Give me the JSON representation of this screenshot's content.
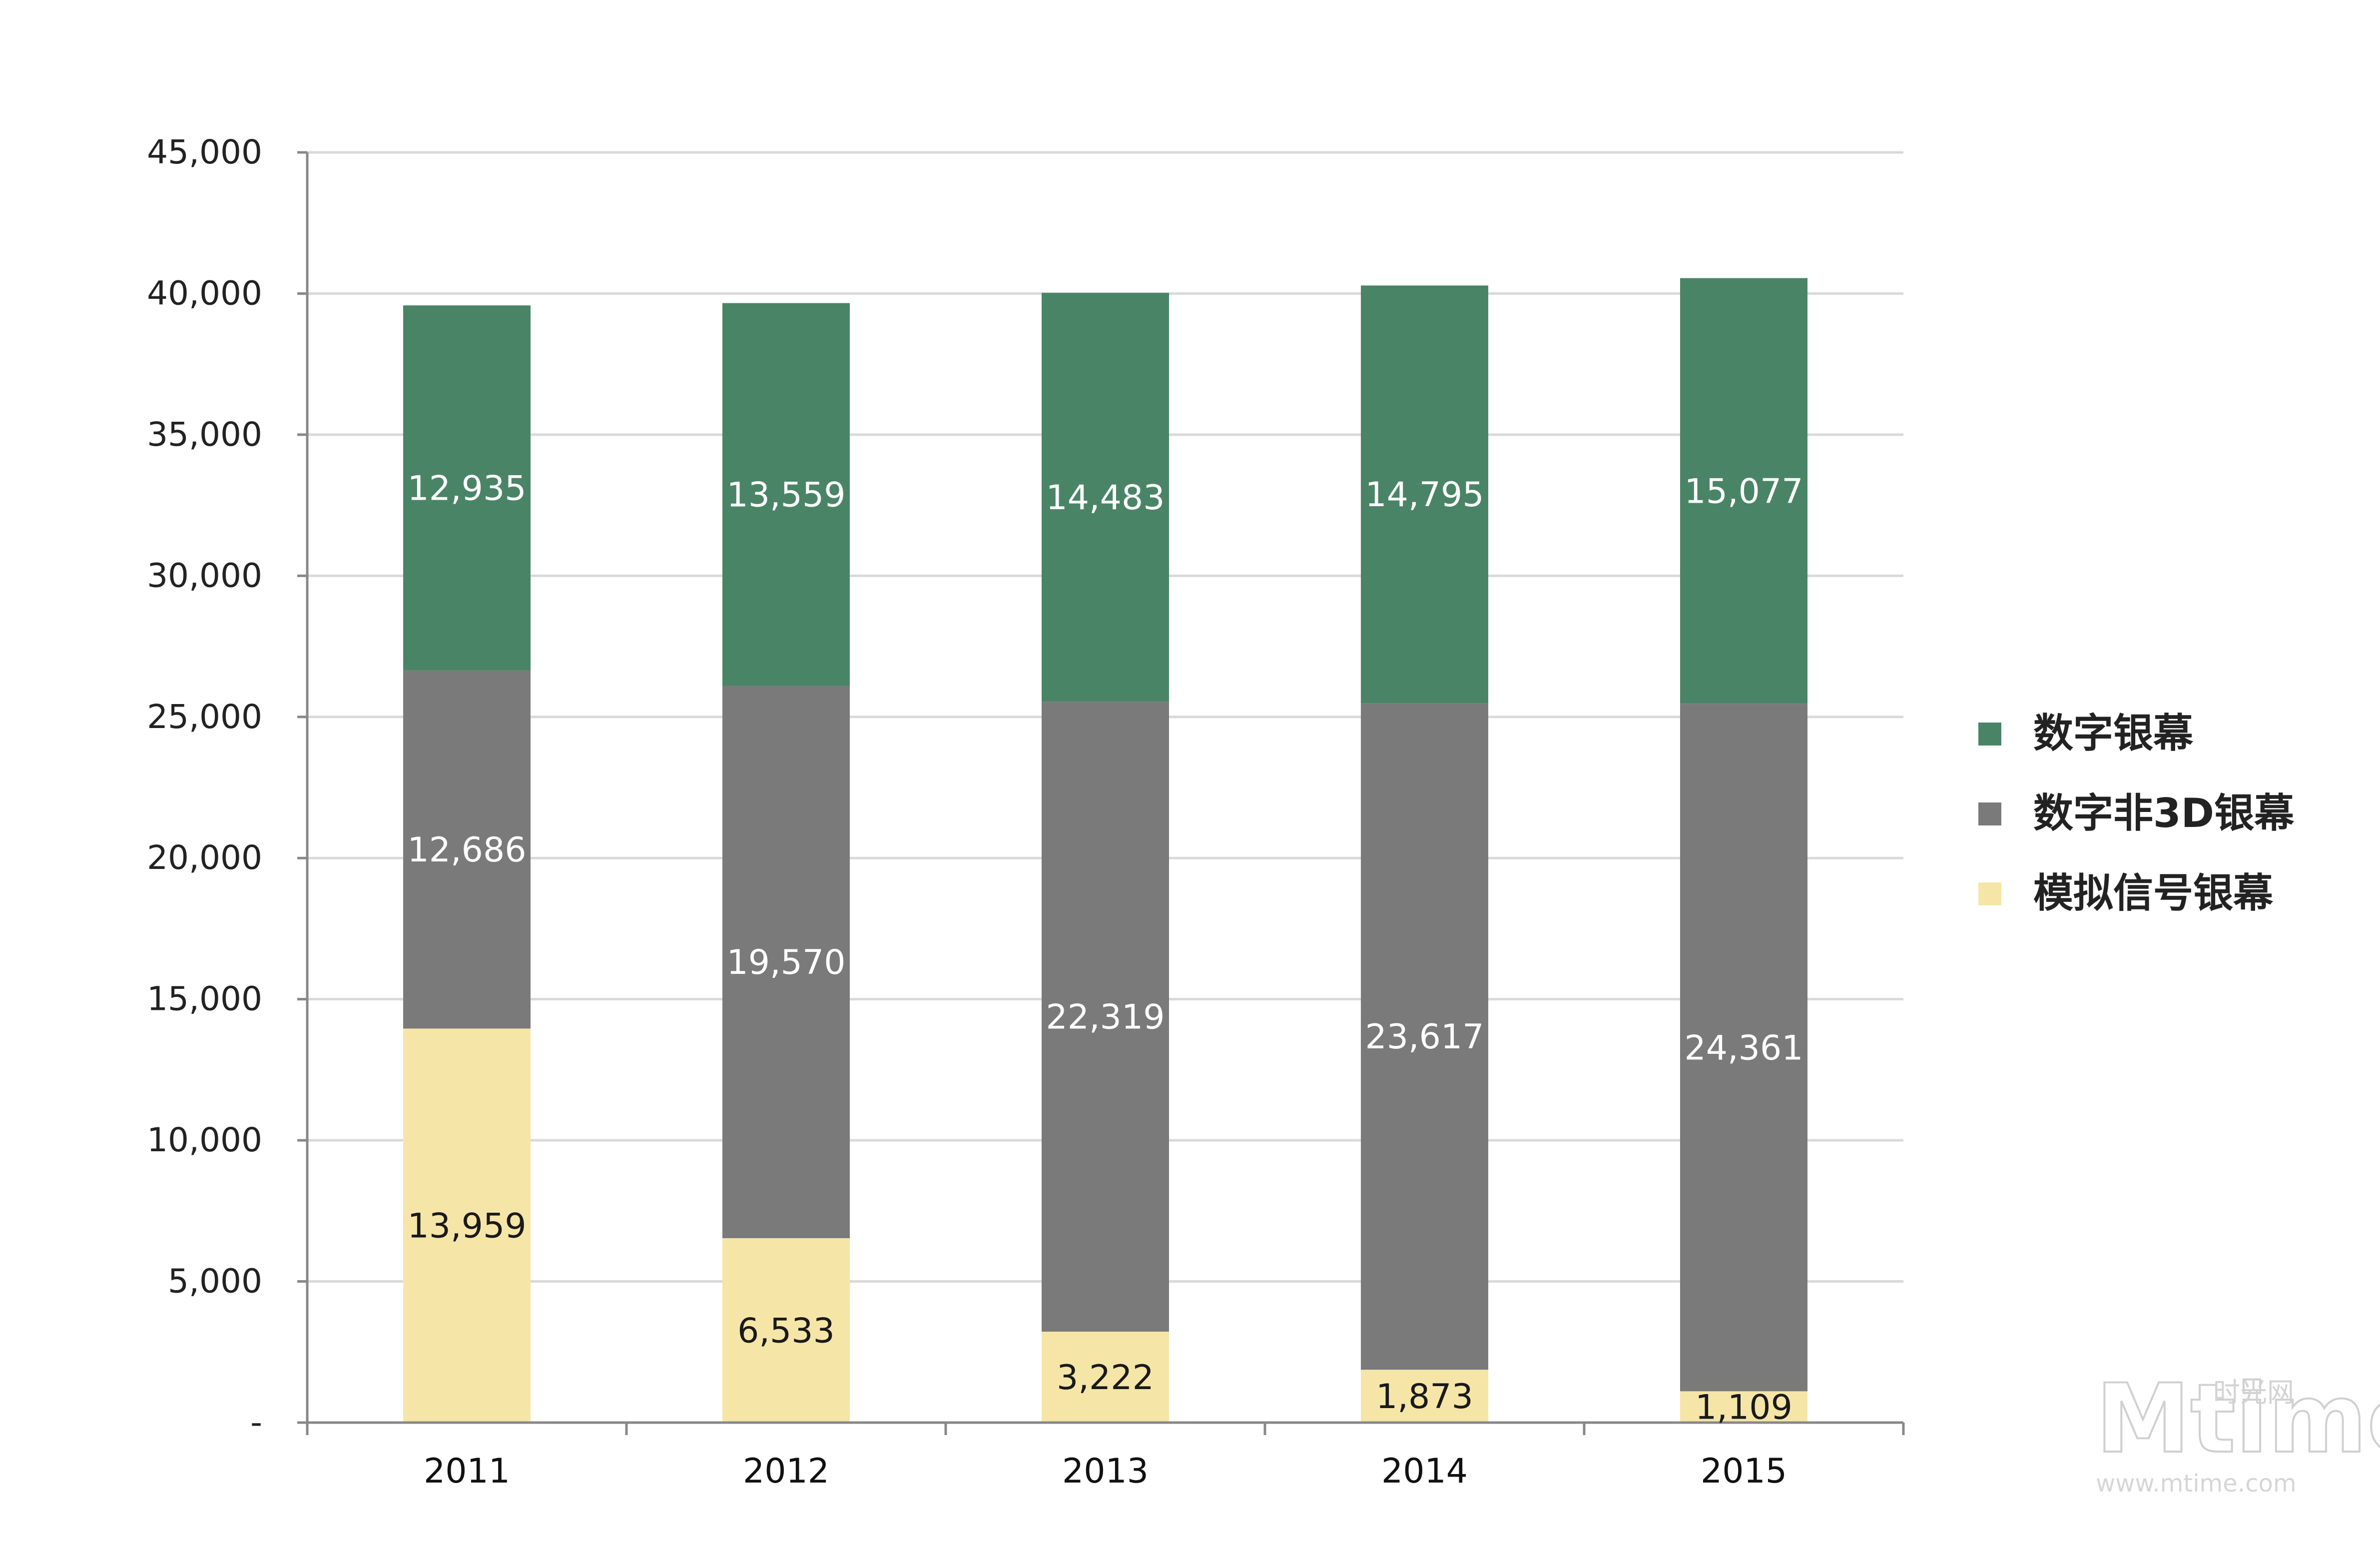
{
  "chart_data": {
    "type": "bar",
    "stacked": true,
    "categories": [
      "2011",
      "2012",
      "2013",
      "2014",
      "2015"
    ],
    "series": [
      {
        "name": "模拟信号银幕",
        "color": "#f5e6a8",
        "label_color": "#1a1a1a",
        "values": [
          13959,
          6533,
          3222,
          1873,
          1109
        ],
        "labels": [
          "13,959",
          "6,533",
          "3,222",
          "1,873",
          "1,109"
        ]
      },
      {
        "name": "数字非3D银幕",
        "color": "#7a7a7a",
        "label_color": "#ffffff",
        "values": [
          12686,
          19570,
          22319,
          23617,
          24361
        ],
        "labels": [
          "12,686",
          "19,570",
          "22,319",
          "23,617",
          "24,361"
        ]
      },
      {
        "name": "数字银幕",
        "color": "#4a8466",
        "label_color": "#ffffff",
        "values": [
          12935,
          13559,
          14483,
          14795,
          15077
        ],
        "labels": [
          "12,935",
          "13,559",
          "14,483",
          "14,795",
          "15,077"
        ]
      }
    ],
    "legend_order": [
      "数字银幕",
      "数字非3D银幕",
      "模拟信号银幕"
    ],
    "ylim": [
      0,
      45000
    ],
    "y_ticks": [
      0,
      5000,
      10000,
      15000,
      20000,
      25000,
      30000,
      35000,
      40000,
      45000
    ],
    "y_tick_labels": [
      "-",
      "5,000",
      "10,000",
      "15,000",
      "20,000",
      "25,000",
      "30,000",
      "35,000",
      "40,000",
      "45,000"
    ],
    "grid": true,
    "legend_position": "right",
    "title": "",
    "xlabel": "",
    "ylabel": ""
  },
  "watermark": {
    "brand": "Mtime",
    "chinese": "时光网",
    "url": "www.mtime.com"
  }
}
